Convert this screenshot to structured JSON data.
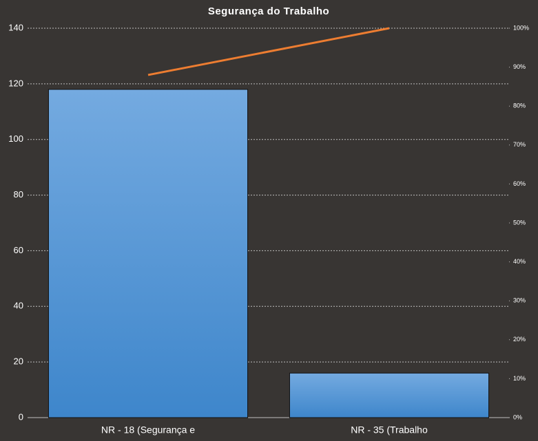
{
  "chart_data": {
    "type": "bar",
    "title": "Segurança do Trabalho",
    "categories": [
      "NR - 18 (Segurança e",
      "NR - 35 (Trabalho"
    ],
    "series": [
      {
        "type": "bar",
        "color": "#4a8fd4",
        "values": [
          118,
          16
        ]
      },
      {
        "type": "line",
        "color": "#ed7d31",
        "axis": "y2",
        "values": [
          88,
          100
        ]
      }
    ],
    "ylim": [
      0,
      140
    ],
    "yticks": [
      0,
      20,
      40,
      60,
      80,
      100,
      120,
      140
    ],
    "y2lim": [
      0,
      100
    ],
    "y2ticks": [
      {
        "value": 0,
        "label": "0%"
      },
      {
        "value": 10,
        "label": "10%"
      },
      {
        "value": 20,
        "label": "20%"
      },
      {
        "value": 30,
        "label": "30%"
      },
      {
        "value": 40,
        "label": "40%"
      },
      {
        "value": 50,
        "label": "50%"
      },
      {
        "value": 60,
        "label": "60%"
      },
      {
        "value": 70,
        "label": "70%"
      },
      {
        "value": 80,
        "label": "80%"
      },
      {
        "value": 90,
        "label": "90%"
      },
      {
        "value": 100,
        "label": "100%"
      }
    ],
    "grid": true
  }
}
